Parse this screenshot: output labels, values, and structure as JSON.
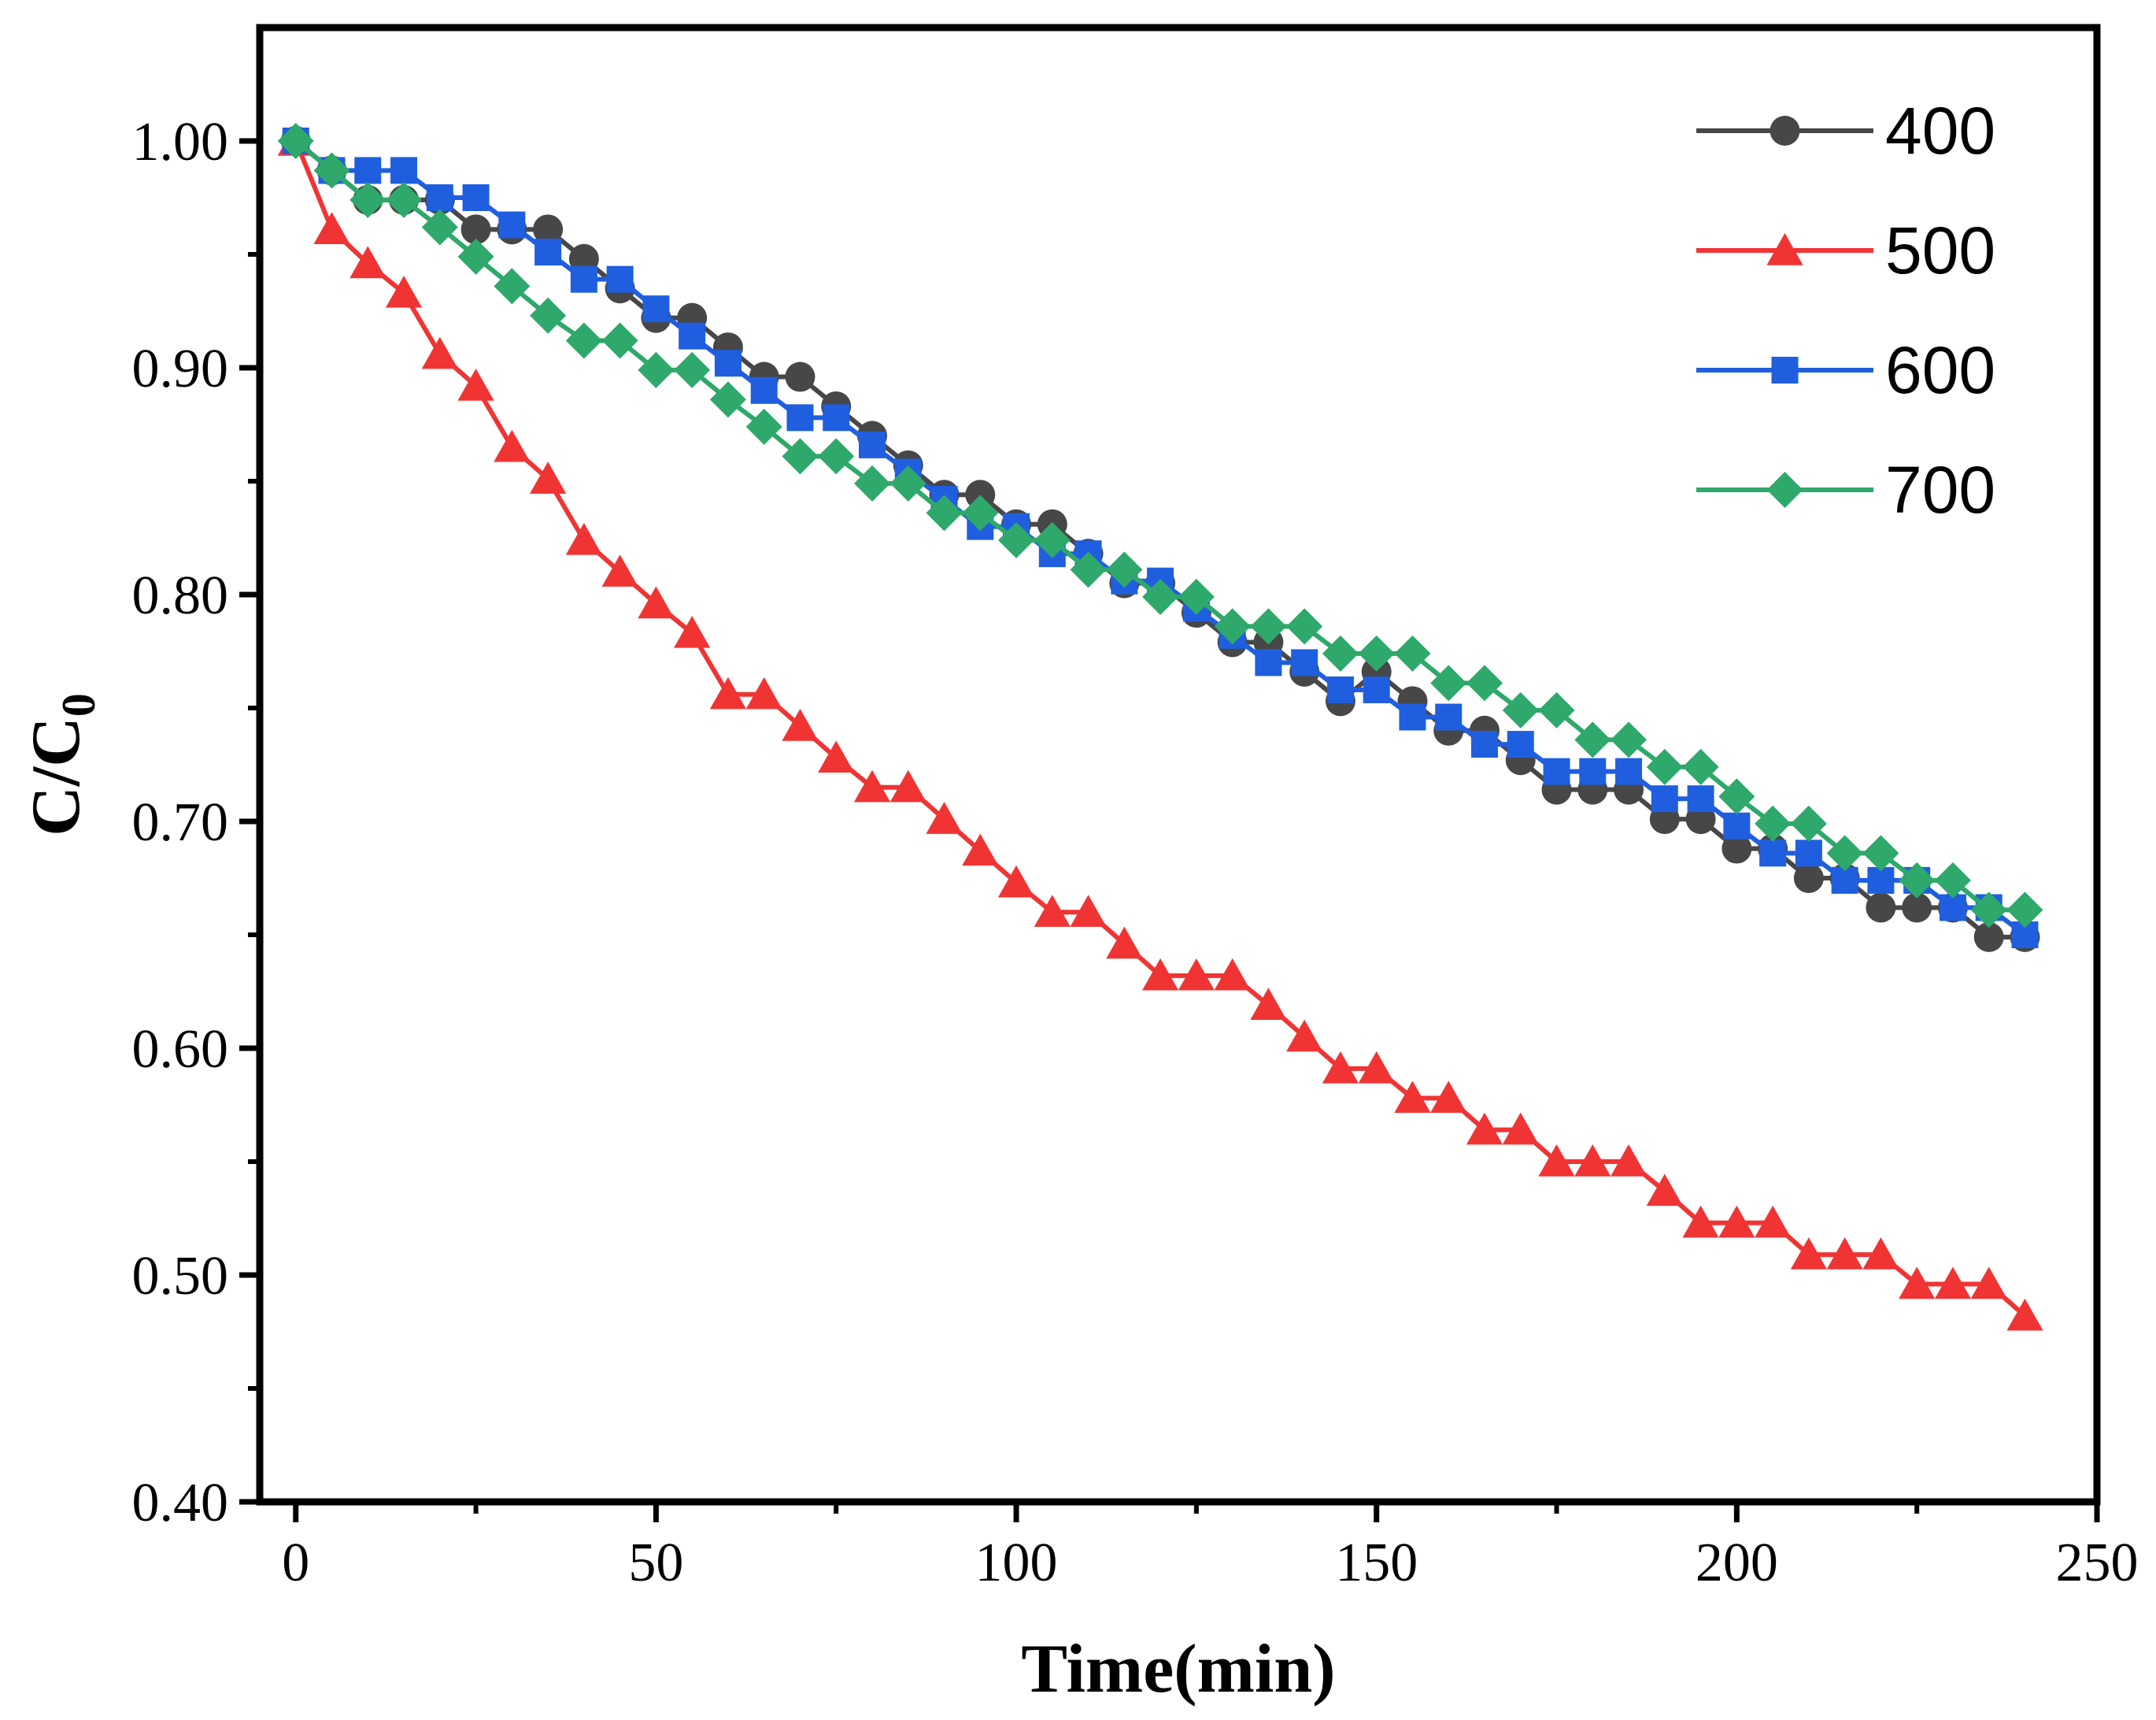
{
  "chart_data": {
    "type": "line",
    "title": "",
    "xlabel": "Time(min)",
    "ylabel_main": "C/C",
    "ylabel_sub": "0",
    "xlim": [
      -5,
      250
    ],
    "ylim": [
      0.4,
      1.05
    ],
    "xticks": [
      0,
      50,
      100,
      150,
      200,
      250
    ],
    "xtick_labels": [
      "0",
      "50",
      "100",
      "150",
      "200",
      "250"
    ],
    "yticks": [
      0.4,
      0.5,
      0.6,
      0.7,
      0.8,
      0.9,
      1.0
    ],
    "ytick_labels": [
      "0.40",
      "0.50",
      "0.60",
      "0.70",
      "0.80",
      "0.90",
      "1.00"
    ],
    "x": [
      0,
      5,
      10,
      15,
      20,
      25,
      30,
      35,
      40,
      45,
      50,
      55,
      60,
      65,
      70,
      75,
      80,
      85,
      90,
      95,
      100,
      105,
      110,
      115,
      120,
      125,
      130,
      135,
      140,
      145,
      150,
      155,
      160,
      165,
      170,
      175,
      180,
      185,
      190,
      195,
      200,
      205,
      210,
      215,
      220,
      225,
      230,
      235,
      240
    ],
    "legend_position": "top-right",
    "series": [
      {
        "name": "400",
        "color": "#474747",
        "marker": "circle",
        "values": [
          1.0,
          0.987,
          0.974,
          0.974,
          0.974,
          0.961,
          0.961,
          0.961,
          0.948,
          0.935,
          0.922,
          0.922,
          0.909,
          0.896,
          0.896,
          0.883,
          0.87,
          0.857,
          0.844,
          0.844,
          0.831,
          0.831,
          0.818,
          0.805,
          0.805,
          0.792,
          0.779,
          0.779,
          0.766,
          0.753,
          0.766,
          0.753,
          0.74,
          0.74,
          0.727,
          0.714,
          0.714,
          0.714,
          0.701,
          0.701,
          0.688,
          0.688,
          0.675,
          0.675,
          0.662,
          0.662,
          0.662,
          0.649,
          0.649
        ]
      },
      {
        "name": "500",
        "color": "#f03434",
        "marker": "triangle",
        "values": [
          1.0,
          0.961,
          0.946,
          0.933,
          0.906,
          0.892,
          0.865,
          0.851,
          0.824,
          0.81,
          0.796,
          0.783,
          0.756,
          0.756,
          0.742,
          0.728,
          0.715,
          0.715,
          0.701,
          0.687,
          0.673,
          0.66,
          0.66,
          0.646,
          0.632,
          0.632,
          0.632,
          0.619,
          0.605,
          0.591,
          0.591,
          0.578,
          0.578,
          0.564,
          0.564,
          0.55,
          0.55,
          0.55,
          0.537,
          0.523,
          0.523,
          0.523,
          0.509,
          0.509,
          0.509,
          0.496,
          0.496,
          0.496,
          0.482
        ]
      },
      {
        "name": "600",
        "color": "#1f5fdf",
        "marker": "square",
        "values": [
          1.0,
          0.987,
          0.987,
          0.987,
          0.975,
          0.975,
          0.963,
          0.951,
          0.939,
          0.939,
          0.926,
          0.914,
          0.902,
          0.89,
          0.878,
          0.878,
          0.866,
          0.854,
          0.842,
          0.83,
          0.83,
          0.818,
          0.818,
          0.806,
          0.806,
          0.794,
          0.782,
          0.77,
          0.77,
          0.758,
          0.758,
          0.746,
          0.746,
          0.734,
          0.734,
          0.722,
          0.722,
          0.722,
          0.71,
          0.71,
          0.698,
          0.686,
          0.686,
          0.674,
          0.674,
          0.674,
          0.662,
          0.662,
          0.65
        ]
      },
      {
        "name": "700",
        "color": "#2ea86b",
        "marker": "diamond",
        "values": [
          1.0,
          0.987,
          0.974,
          0.974,
          0.962,
          0.949,
          0.936,
          0.923,
          0.912,
          0.912,
          0.899,
          0.899,
          0.886,
          0.874,
          0.861,
          0.861,
          0.849,
          0.849,
          0.836,
          0.836,
          0.824,
          0.824,
          0.811,
          0.811,
          0.799,
          0.799,
          0.786,
          0.786,
          0.786,
          0.774,
          0.774,
          0.774,
          0.761,
          0.761,
          0.749,
          0.749,
          0.736,
          0.736,
          0.724,
          0.724,
          0.711,
          0.699,
          0.699,
          0.686,
          0.686,
          0.674,
          0.674,
          0.661,
          0.661
        ]
      }
    ]
  }
}
